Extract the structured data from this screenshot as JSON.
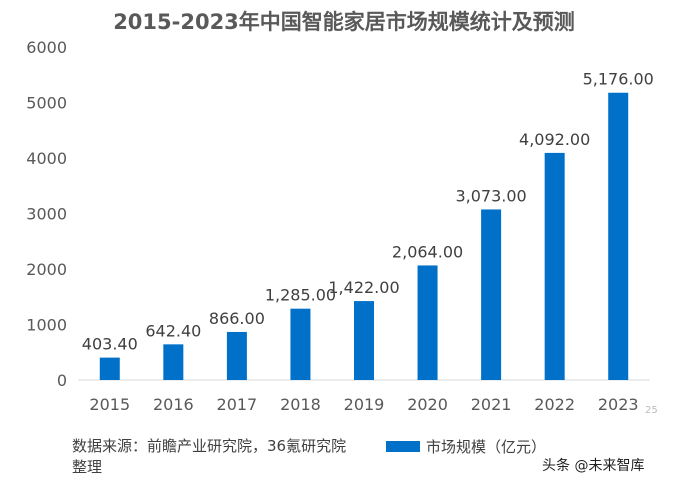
{
  "chart_data": {
    "type": "bar",
    "title": "2015-2023年中国智能家居市场规模统计及预测",
    "categories": [
      "2015",
      "2016",
      "2017",
      "2018",
      "2019",
      "2020",
      "2021",
      "2022",
      "2023"
    ],
    "series": [
      {
        "name": "市场规模（亿元）",
        "values": [
          403.4,
          642.4,
          866.0,
          1285.0,
          1422.0,
          2064.0,
          3073.0,
          4092.0,
          5176.0
        ]
      }
    ],
    "data_labels": [
      "403.40",
      "642.40",
      "866.00",
      "1,285.00",
      "1,422.00",
      "2,064.00",
      "3,073.00",
      "4,092.00",
      "5,176.00"
    ],
    "yticks": [
      "0",
      "1000",
      "2000",
      "3000",
      "4000",
      "5000",
      "6000"
    ],
    "ylim": [
      0,
      6000
    ],
    "grid": false,
    "legend": "bottom",
    "color": "#0070C8"
  },
  "source": "数据来源：前瞻产业研究院，36氪研究院整理",
  "page_number": "25",
  "watermark": "头条 @未来智库"
}
